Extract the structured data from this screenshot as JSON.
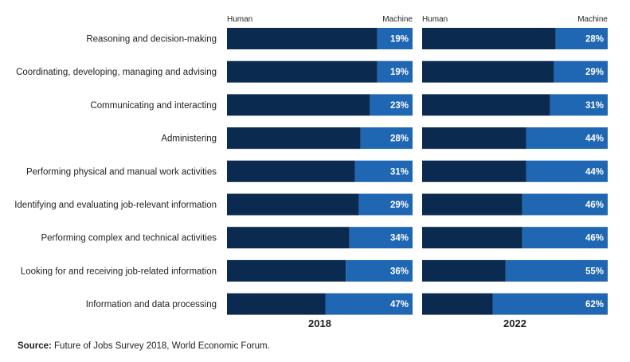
{
  "chart_data": {
    "type": "bar",
    "stacked": true,
    "orientation": "horizontal",
    "categories": [
      "Reasoning and decision-making",
      "Coordinating, developing, managing and advising",
      "Communicating and interacting",
      "Administering",
      "Performing physical and manual work activities",
      "Identifying and evaluating job-relevant information",
      "Performing complex and technical activities",
      "Looking for and receiving job-related information",
      "Information and data processing"
    ],
    "panels": [
      {
        "year": "2018",
        "series": [
          {
            "name": "Human",
            "values": [
              81,
              81,
              77,
              72,
              69,
              71,
              66,
              64,
              53
            ]
          },
          {
            "name": "Machine",
            "values": [
              19,
              19,
              23,
              28,
              31,
              29,
              34,
              36,
              47
            ]
          }
        ]
      },
      {
        "year": "2022",
        "series": [
          {
            "name": "Human",
            "values": [
              72,
              71,
              69,
              56,
              56,
              54,
              54,
              45,
              38
            ]
          },
          {
            "name": "Machine",
            "values": [
              28,
              29,
              31,
              44,
              44,
              46,
              46,
              55,
              62
            ]
          }
        ]
      }
    ],
    "legend": {
      "left": "Human",
      "right": "Machine"
    },
    "xlim": [
      0,
      100
    ],
    "value_suffix": "%",
    "grid": false
  },
  "colors": {
    "human": "#0b2a4f",
    "machine": "#1f66b3",
    "label_text": "#222222",
    "value_text": "#ffffff"
  },
  "source": {
    "label": "Source:",
    "text": "Future of Jobs Survey 2018, World Economic Forum."
  }
}
